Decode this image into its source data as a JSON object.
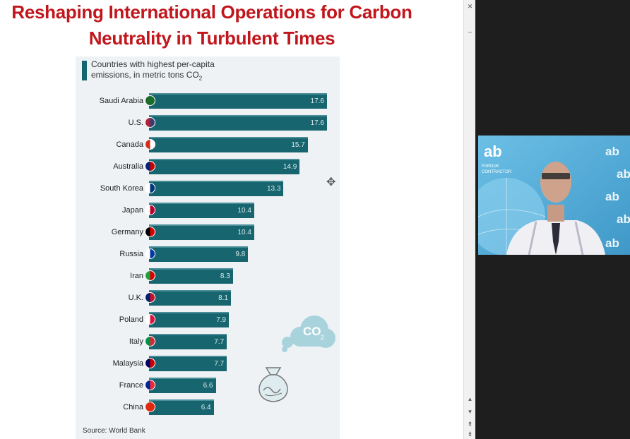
{
  "slide": {
    "title_line1": "Reshaping International Operations for Carbon",
    "title_line2": "Neutrality in Turbulent Times"
  },
  "infographic": {
    "legend_line1": "Countries with highest per-capita",
    "legend_line2": "emissions, in metric tons CO",
    "legend_sub": "2",
    "source": "Source: World Bank",
    "co2_label": "CO",
    "co2_sub": "2",
    "accent_color": "#17656f"
  },
  "chart_data": {
    "type": "bar",
    "orientation": "horizontal",
    "categories": [
      "Saudi Arabia",
      "U.S.",
      "Canada",
      "Australia",
      "South Korea",
      "Japan",
      "Germany",
      "Russia",
      "Iran",
      "U.K.",
      "Poland",
      "Italy",
      "Malaysia",
      "France",
      "China"
    ],
    "values": [
      17.6,
      17.6,
      15.7,
      14.9,
      13.3,
      10.4,
      10.4,
      9.8,
      8.3,
      8.1,
      7.9,
      7.7,
      7.7,
      6.6,
      6.4
    ],
    "value_labels": [
      "17.6",
      "17.6",
      "15.7",
      "14.9",
      "13.3",
      "10.4",
      "10.4",
      "9.8",
      "8.3",
      "8.1",
      "7.9",
      "7.7",
      "7.7",
      "6.6",
      "6.4"
    ],
    "bar_color": "#17656f"
  },
  "video_tile": {
    "brand": "ab",
    "name_line1": "FAROUK",
    "name_line2": "CONTRACTOR"
  }
}
